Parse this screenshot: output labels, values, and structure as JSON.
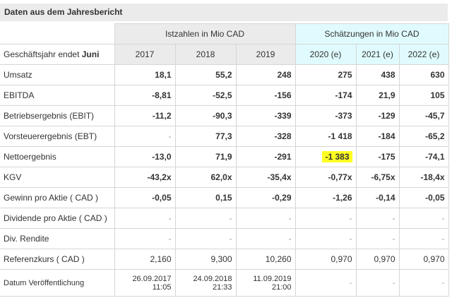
{
  "title": "Daten aus dem Jahresbericht",
  "groups": {
    "actual": "Istzahlen in Mio CAD",
    "estimate": "Schätzungen in Mio CAD"
  },
  "fiscal_label": "Geschäftsjahr endet ",
  "fiscal_month": "Juni",
  "years": [
    "2017",
    "2018",
    "2019",
    "2020 (e)",
    "2021 (e)",
    "2022 (e)"
  ],
  "highlight_color": "#ffff22",
  "rows": [
    {
      "label": "Umsatz",
      "values": [
        "18,1",
        "55,2",
        "248",
        "275",
        "438",
        "630"
      ]
    },
    {
      "label": "EBITDA",
      "values": [
        "-8,81",
        "-52,5",
        "-156",
        "-174",
        "21,9",
        "105"
      ]
    },
    {
      "label": "Betriebsergebnis (EBIT)",
      "values": [
        "-11,2",
        "-90,3",
        "-339",
        "-373",
        "-129",
        "-45,7"
      ]
    },
    {
      "label": "Vorsteuerergebnis (EBT)",
      "values": [
        "-",
        "77,3",
        "-328",
        "-1 418",
        "-184",
        "-65,2"
      ]
    },
    {
      "label": "Nettoergebnis",
      "values": [
        "-13,0",
        "71,9",
        "-291",
        "-1 383",
        "-175",
        "-74,1"
      ]
    },
    {
      "label": "KGV",
      "values": [
        "-43,2x",
        "62,0x",
        "-35,4x",
        "-0,77x",
        "-6,75x",
        "-18,4x"
      ]
    },
    {
      "label": "Gewinn pro Aktie ( CAD )",
      "values": [
        "-0,05",
        "0,15",
        "-0,29",
        "-1,26",
        "-0,14",
        "-0,05"
      ]
    },
    {
      "label": "Dividende pro Aktie ( CAD )",
      "values": [
        "-",
        "-",
        "-",
        "-",
        "-",
        "-"
      ]
    },
    {
      "label": "Div. Rendite",
      "values": [
        "-",
        "-",
        "-",
        "-",
        "-",
        "-"
      ]
    },
    {
      "label": "Referenzkurs ( CAD )",
      "values": [
        "2,160",
        "9,300",
        "10,260",
        "0,970",
        "0,970",
        "0,970"
      ]
    },
    {
      "label": "Datum Veröffentlichung",
      "values": [
        [
          "26.09.2017",
          "11:05"
        ],
        [
          "24.09.2018",
          "21:33"
        ],
        [
          "11.09.2019",
          "21:00"
        ],
        "-",
        "-",
        "-"
      ]
    }
  ]
}
